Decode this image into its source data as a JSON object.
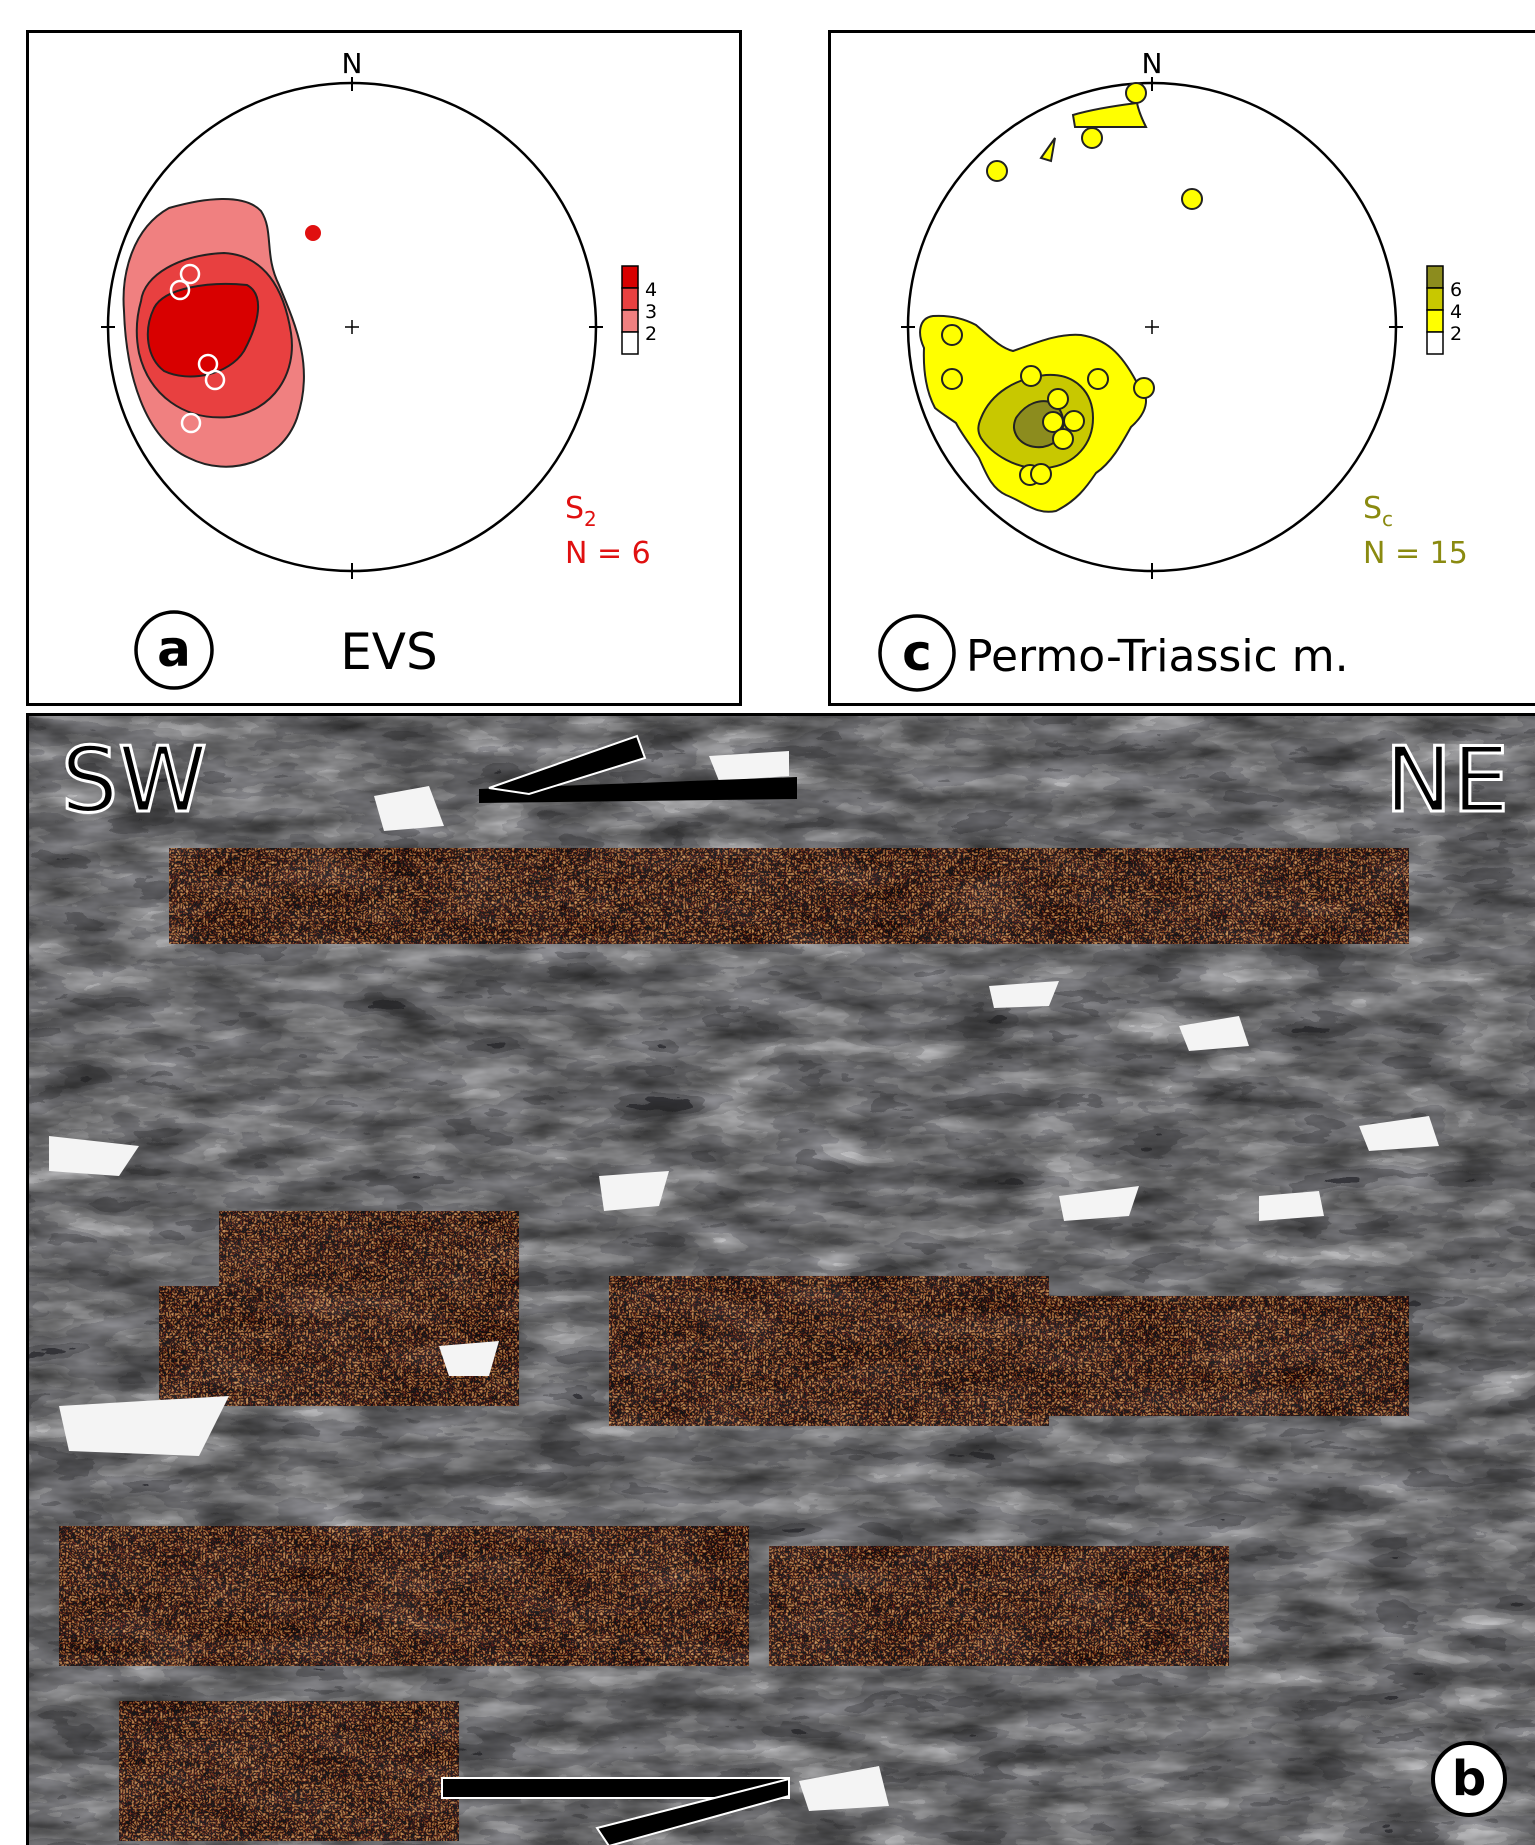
{
  "panel_a": {
    "letter": "a",
    "title": "EVS",
    "north": "N",
    "legend_ticks": [
      "4",
      "3",
      "2"
    ],
    "fabric_label_main": "S",
    "fabric_label_sub": "2",
    "count_label": "N = 6",
    "colors": {
      "accent": "#e01010",
      "level2": "#f08080",
      "level3": "#e84040",
      "level4": "#d80000"
    }
  },
  "panel_c": {
    "letter": "c",
    "title": "Permo-Triassic m.",
    "north": "N",
    "legend_ticks": [
      "6",
      "4",
      "2"
    ],
    "fabric_label_main": "S",
    "fabric_label_sub": "c",
    "count_label": "N = 15",
    "colors": {
      "accent": "#8a8a10",
      "level2": "#ffff00",
      "level4": "#c8c800",
      "level6": "#8c8c1e"
    }
  },
  "panel_b": {
    "letter": "b",
    "left_direction": "SW",
    "right_direction": "NE"
  }
}
